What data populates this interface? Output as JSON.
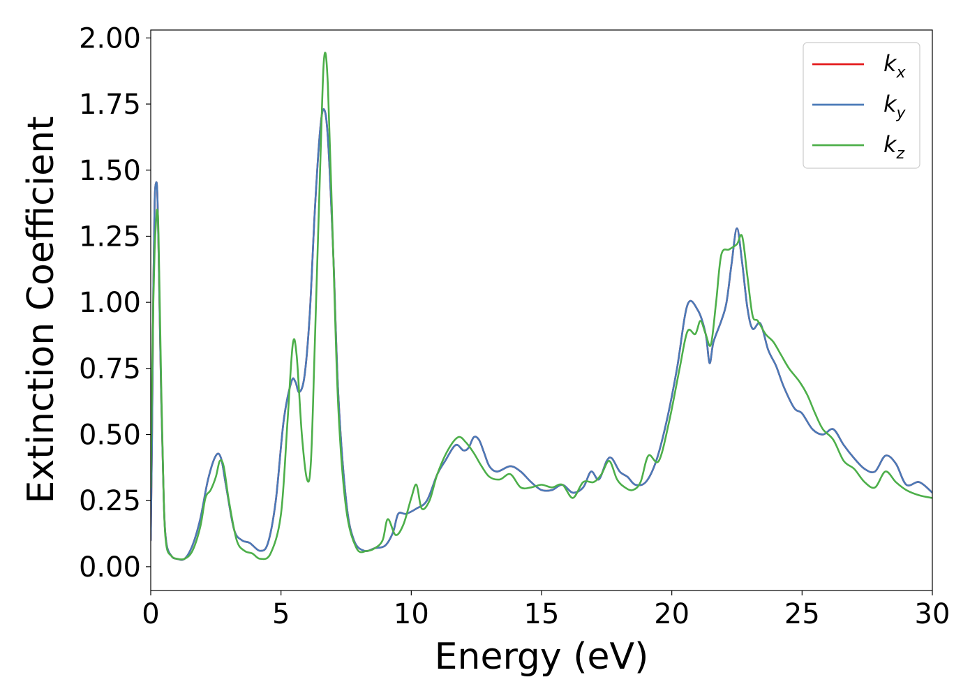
{
  "chart_data": {
    "type": "line",
    "xlabel": "Energy (eV)",
    "ylabel": "Extinction Coefficient",
    "xlim": [
      0,
      30
    ],
    "ylim": [
      -0.09,
      2.03
    ],
    "xticks": [
      0,
      5,
      10,
      15,
      20,
      25,
      30
    ],
    "xtick_labels": [
      "0",
      "5",
      "10",
      "15",
      "20",
      "25",
      "30"
    ],
    "yticks": [
      0,
      0.25,
      0.5,
      0.75,
      1.0,
      1.25,
      1.5,
      1.75,
      2.0
    ],
    "ytick_labels": [
      "0.00",
      "0.25",
      "0.50",
      "0.75",
      "1.00",
      "1.25",
      "1.50",
      "1.75",
      "2.00"
    ],
    "grid": false,
    "legend_position": "top-right",
    "series": [
      {
        "name": "k",
        "subscript": "x",
        "color": "#e41a1c",
        "x": [
          0,
          0.05,
          0.1,
          0.15,
          0.2,
          0.25,
          0.3,
          0.4,
          0.5,
          0.6,
          0.8,
          1.0,
          1.3,
          1.6,
          1.9,
          2.2,
          2.5,
          2.7,
          2.9,
          3.2,
          3.5,
          3.8,
          4.2,
          4.5,
          4.8,
          5.1,
          5.4,
          5.55,
          5.7,
          5.9,
          6.1,
          6.3,
          6.5,
          6.65,
          6.8,
          7.0,
          7.2,
          7.5,
          7.8,
          8.2,
          8.6,
          9.0,
          9.3,
          9.5,
          9.8,
          10.2,
          10.6,
          11.0,
          11.3,
          11.7,
          12.0,
          12.2,
          12.4,
          12.6,
          12.8,
          13.0,
          13.3,
          13.8,
          14.2,
          14.6,
          15.0,
          15.4,
          15.8,
          16.2,
          16.6,
          16.9,
          17.2,
          17.5,
          17.7,
          18.0,
          18.3,
          18.6,
          19.0,
          19.4,
          19.8,
          20.2,
          20.6,
          21.0,
          21.3,
          21.45,
          21.6,
          21.9,
          22.1,
          22.3,
          22.5,
          22.7,
          22.9,
          23.1,
          23.4,
          23.7,
          24.0,
          24.3,
          24.7,
          25.0,
          25.4,
          25.8,
          26.2,
          26.6,
          27.0,
          27.4,
          27.8,
          28.2,
          28.6,
          29.0,
          29.5,
          30.0
        ],
        "values": [
          0.1,
          0.5,
          1.05,
          1.38,
          1.45,
          1.42,
          1.2,
          0.65,
          0.25,
          0.09,
          0.04,
          0.03,
          0.03,
          0.08,
          0.18,
          0.33,
          0.42,
          0.41,
          0.3,
          0.14,
          0.1,
          0.09,
          0.06,
          0.09,
          0.25,
          0.55,
          0.7,
          0.7,
          0.66,
          0.72,
          0.95,
          1.35,
          1.65,
          1.73,
          1.62,
          1.2,
          0.65,
          0.25,
          0.1,
          0.06,
          0.07,
          0.08,
          0.13,
          0.2,
          0.2,
          0.22,
          0.25,
          0.35,
          0.4,
          0.46,
          0.44,
          0.45,
          0.49,
          0.48,
          0.43,
          0.38,
          0.36,
          0.38,
          0.36,
          0.32,
          0.29,
          0.29,
          0.31,
          0.28,
          0.3,
          0.36,
          0.33,
          0.4,
          0.41,
          0.36,
          0.34,
          0.31,
          0.32,
          0.4,
          0.55,
          0.75,
          0.99,
          0.97,
          0.88,
          0.77,
          0.85,
          0.93,
          1.0,
          1.15,
          1.28,
          1.15,
          0.98,
          0.9,
          0.92,
          0.82,
          0.76,
          0.68,
          0.6,
          0.58,
          0.52,
          0.5,
          0.52,
          0.46,
          0.41,
          0.37,
          0.36,
          0.42,
          0.39,
          0.31,
          0.32,
          0.28
        ]
      },
      {
        "name": "k",
        "subscript": "y",
        "color": "#4a7ab8",
        "x": [
          0,
          0.05,
          0.1,
          0.15,
          0.2,
          0.25,
          0.3,
          0.4,
          0.5,
          0.6,
          0.8,
          1.0,
          1.3,
          1.6,
          1.9,
          2.2,
          2.5,
          2.7,
          2.9,
          3.2,
          3.5,
          3.8,
          4.2,
          4.5,
          4.8,
          5.1,
          5.4,
          5.55,
          5.7,
          5.9,
          6.1,
          6.3,
          6.5,
          6.65,
          6.8,
          7.0,
          7.2,
          7.5,
          7.8,
          8.2,
          8.6,
          9.0,
          9.3,
          9.5,
          9.8,
          10.2,
          10.6,
          11.0,
          11.3,
          11.7,
          12.0,
          12.2,
          12.4,
          12.6,
          12.8,
          13.0,
          13.3,
          13.8,
          14.2,
          14.6,
          15.0,
          15.4,
          15.8,
          16.2,
          16.6,
          16.9,
          17.2,
          17.5,
          17.7,
          18.0,
          18.3,
          18.6,
          19.0,
          19.4,
          19.8,
          20.2,
          20.6,
          21.0,
          21.3,
          21.45,
          21.6,
          21.9,
          22.1,
          22.3,
          22.5,
          22.7,
          22.9,
          23.1,
          23.4,
          23.7,
          24.0,
          24.3,
          24.7,
          25.0,
          25.4,
          25.8,
          26.2,
          26.6,
          27.0,
          27.4,
          27.8,
          28.2,
          28.6,
          29.0,
          29.5,
          30.0
        ],
        "values": [
          0.1,
          0.5,
          1.05,
          1.38,
          1.45,
          1.42,
          1.2,
          0.65,
          0.25,
          0.09,
          0.04,
          0.03,
          0.03,
          0.08,
          0.18,
          0.33,
          0.42,
          0.41,
          0.3,
          0.14,
          0.1,
          0.09,
          0.06,
          0.09,
          0.25,
          0.55,
          0.7,
          0.7,
          0.66,
          0.72,
          0.95,
          1.35,
          1.65,
          1.73,
          1.62,
          1.2,
          0.65,
          0.25,
          0.1,
          0.06,
          0.07,
          0.08,
          0.13,
          0.2,
          0.2,
          0.22,
          0.25,
          0.35,
          0.4,
          0.46,
          0.44,
          0.45,
          0.49,
          0.48,
          0.43,
          0.38,
          0.36,
          0.38,
          0.36,
          0.32,
          0.29,
          0.29,
          0.31,
          0.28,
          0.3,
          0.36,
          0.33,
          0.4,
          0.41,
          0.36,
          0.34,
          0.31,
          0.32,
          0.4,
          0.55,
          0.75,
          0.99,
          0.97,
          0.88,
          0.77,
          0.85,
          0.93,
          1.0,
          1.15,
          1.28,
          1.15,
          0.98,
          0.9,
          0.92,
          0.82,
          0.76,
          0.68,
          0.6,
          0.58,
          0.52,
          0.5,
          0.52,
          0.46,
          0.41,
          0.37,
          0.36,
          0.42,
          0.39,
          0.31,
          0.32,
          0.28
        ]
      },
      {
        "name": "k",
        "subscript": "z",
        "color": "#4daf4a",
        "x": [
          0,
          0.05,
          0.1,
          0.15,
          0.2,
          0.25,
          0.3,
          0.4,
          0.5,
          0.6,
          0.8,
          1.0,
          1.3,
          1.6,
          1.9,
          2.1,
          2.3,
          2.5,
          2.65,
          2.8,
          3.0,
          3.3,
          3.6,
          3.9,
          4.2,
          4.6,
          5.0,
          5.25,
          5.45,
          5.6,
          5.8,
          6.0,
          6.15,
          6.3,
          6.5,
          6.65,
          6.8,
          7.0,
          7.2,
          7.5,
          7.9,
          8.3,
          8.6,
          8.9,
          9.1,
          9.4,
          9.7,
          10.0,
          10.2,
          10.4,
          10.7,
          11.0,
          11.4,
          11.8,
          12.1,
          12.4,
          12.7,
          13.0,
          13.4,
          13.8,
          14.2,
          14.6,
          15.0,
          15.4,
          15.8,
          16.2,
          16.6,
          17.0,
          17.3,
          17.6,
          17.9,
          18.2,
          18.5,
          18.8,
          19.1,
          19.5,
          19.9,
          20.3,
          20.6,
          20.9,
          21.1,
          21.3,
          21.5,
          21.7,
          21.9,
          22.2,
          22.5,
          22.7,
          22.9,
          23.1,
          23.3,
          23.6,
          23.9,
          24.2,
          24.5,
          24.9,
          25.2,
          25.5,
          25.8,
          26.2,
          26.6,
          27.0,
          27.4,
          27.8,
          28.2,
          28.6,
          29.0,
          29.5,
          30.0
        ],
        "values": [
          0.3,
          0.7,
          1.0,
          1.2,
          1.3,
          1.35,
          1.25,
          0.7,
          0.25,
          0.08,
          0.04,
          0.03,
          0.03,
          0.06,
          0.15,
          0.26,
          0.29,
          0.34,
          0.4,
          0.38,
          0.25,
          0.1,
          0.06,
          0.05,
          0.03,
          0.05,
          0.2,
          0.55,
          0.84,
          0.8,
          0.5,
          0.33,
          0.4,
          0.85,
          1.5,
          1.92,
          1.82,
          1.2,
          0.6,
          0.22,
          0.07,
          0.06,
          0.07,
          0.1,
          0.18,
          0.12,
          0.16,
          0.26,
          0.31,
          0.22,
          0.25,
          0.35,
          0.44,
          0.49,
          0.47,
          0.43,
          0.38,
          0.34,
          0.33,
          0.35,
          0.3,
          0.3,
          0.31,
          0.3,
          0.31,
          0.26,
          0.32,
          0.32,
          0.35,
          0.4,
          0.33,
          0.3,
          0.29,
          0.32,
          0.42,
          0.4,
          0.55,
          0.75,
          0.89,
          0.88,
          0.93,
          0.88,
          0.84,
          1.0,
          1.18,
          1.2,
          1.22,
          1.25,
          1.1,
          0.95,
          0.93,
          0.88,
          0.85,
          0.8,
          0.75,
          0.7,
          0.65,
          0.58,
          0.52,
          0.48,
          0.4,
          0.37,
          0.32,
          0.3,
          0.36,
          0.32,
          0.29,
          0.27,
          0.26
        ]
      }
    ]
  }
}
